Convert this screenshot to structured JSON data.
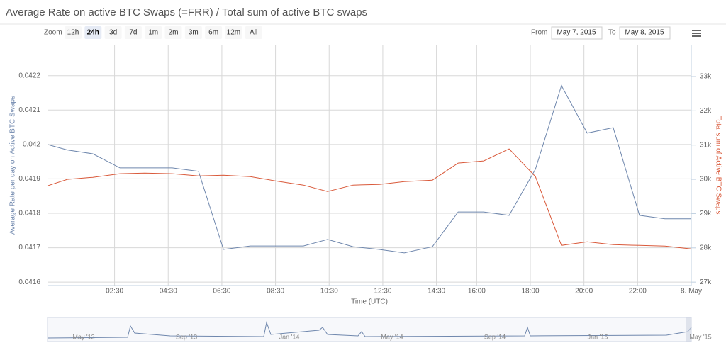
{
  "header": {
    "title": "Average Rate on active BTC Swaps (=FRR) / Total sum of active BTC swaps"
  },
  "controls": {
    "zoom_label": "Zoom",
    "buttons": [
      "12h",
      "24h",
      "3d",
      "7d",
      "1m",
      "2m",
      "3m",
      "6m",
      "12m",
      "All"
    ],
    "selected": "24h",
    "from_label": "From",
    "from_value": "May 7, 2015",
    "to_label": "To",
    "to_value": "May 8, 2015"
  },
  "chart_data": {
    "type": "line",
    "ylabel": "Average Rate per day on Active BTC Swaps",
    "y2label": "Total sum of Active BTC Swaps",
    "xlabel": "Time (UTC)",
    "xlim": [
      0,
      24
    ],
    "xticks": [
      {
        "value": 2.5,
        "label": "02:30"
      },
      {
        "value": 4.5,
        "label": "04:30"
      },
      {
        "value": 6.5,
        "label": "06:30"
      },
      {
        "value": 8.5,
        "label": "08:30"
      },
      {
        "value": 10.5,
        "label": "10:30"
      },
      {
        "value": 12.5,
        "label": "12:30"
      },
      {
        "value": 14.5,
        "label": "14:30"
      },
      {
        "value": 16,
        "label": "16:00"
      },
      {
        "value": 18,
        "label": "18:00"
      },
      {
        "value": 20,
        "label": "20:00"
      },
      {
        "value": 22,
        "label": "22:00"
      },
      {
        "value": 24,
        "label": "8. May"
      }
    ],
    "ylim": [
      0.04159,
      0.04229
    ],
    "yticks": [
      0.0416,
      0.0417,
      0.0418,
      0.0419,
      0.042,
      0.0421,
      0.0422
    ],
    "y2lim": [
      26900,
      33930
    ],
    "y2ticks": [
      {
        "value": 27000,
        "label": "27k"
      },
      {
        "value": 28000,
        "label": "28k"
      },
      {
        "value": 29000,
        "label": "29k"
      },
      {
        "value": 30000,
        "label": "30k"
      },
      {
        "value": 31000,
        "label": "31k"
      },
      {
        "value": 32000,
        "label": "32k"
      },
      {
        "value": 33000,
        "label": "33k"
      }
    ],
    "grid": true,
    "series": [
      {
        "color": "#6f87ad",
        "axis": "y",
        "x": [
          0,
          0.74,
          1.69,
          2.7,
          4.65,
          5.63,
          6.56,
          7.56,
          9.54,
          10.44,
          11.39,
          12.37,
          13.3,
          14.35,
          15.31,
          16.26,
          17.21,
          18.19,
          19.16,
          20.12,
          21.09,
          22.07,
          23.02,
          24
        ],
        "values": [
          0.042,
          0.041984,
          0.041973,
          0.041932,
          0.041932,
          0.041922,
          0.041695,
          0.041705,
          0.041705,
          0.041724,
          0.041703,
          0.041695,
          0.041685,
          0.041703,
          0.041804,
          0.041804,
          0.041794,
          0.041928,
          0.042171,
          0.042033,
          0.042049,
          0.041794,
          0.041784,
          0.041784
        ]
      },
      {
        "color": "#d9593a",
        "axis": "y2",
        "x": [
          0,
          0.74,
          1.69,
          2.7,
          3.62,
          4.65,
          5.63,
          6.56,
          7.56,
          8.49,
          9.54,
          10.44,
          11.39,
          12.37,
          13.3,
          14.35,
          15.31,
          16.26,
          17.21,
          18.19,
          19.16,
          20.12,
          21.09,
          22.07,
          23.02,
          24
        ],
        "values": [
          29812,
          30000,
          30060,
          30164,
          30184,
          30164,
          30100,
          30122,
          30080,
          29957,
          29832,
          29646,
          29832,
          29853,
          29936,
          29977,
          30474,
          30536,
          30888,
          30080,
          28072,
          28176,
          28093,
          28072,
          28052,
          27969
        ]
      }
    ]
  },
  "navigator": {
    "labels": [
      "May '13",
      "Sep '13",
      "Jan '14",
      "May '14",
      "Sep '14",
      "Jan '15",
      "May '15"
    ]
  }
}
